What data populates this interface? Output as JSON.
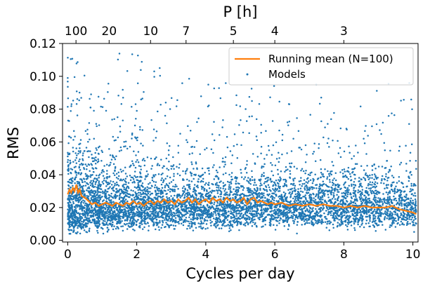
{
  "chart_data": {
    "type": "scatter",
    "xlabel": "Cycles per day",
    "ylabel": "RMS",
    "top_xlabel": "P [h]",
    "xlim": [
      -0.15,
      10.15
    ],
    "ylim": [
      -0.001,
      0.12
    ],
    "x_ticks": [
      0,
      2,
      4,
      6,
      8,
      10
    ],
    "x_tick_labels": [
      "0",
      "2",
      "4",
      "6",
      "8",
      "10"
    ],
    "y_ticks": [
      0.0,
      0.02,
      0.04,
      0.06,
      0.08,
      0.1,
      0.12
    ],
    "y_tick_labels": [
      "0.00",
      "0.02",
      "0.04",
      "0.06",
      "0.08",
      "0.10",
      "0.12"
    ],
    "top_ticks_hours": [
      100,
      20,
      10,
      7,
      5,
      4,
      3
    ],
    "top_tick_labels": [
      "100",
      "20",
      "10",
      "7",
      "5",
      "4",
      "3"
    ],
    "legend_position": "top-right",
    "colors": {
      "scatter": "#1f77b4",
      "line": "#ff7f0e"
    },
    "series": [
      {
        "name": "Running mean (N=100)",
        "kind": "line",
        "x": [
          0.0,
          0.05,
          0.1,
          0.15,
          0.2,
          0.25,
          0.3,
          0.35,
          0.4,
          0.5,
          0.6,
          0.7,
          0.8,
          0.9,
          1.0,
          1.1,
          1.2,
          1.3,
          1.4,
          1.5,
          1.6,
          1.7,
          1.8,
          1.9,
          2.0,
          2.1,
          2.2,
          2.3,
          2.4,
          2.5,
          2.6,
          2.7,
          2.8,
          2.9,
          3.0,
          3.1,
          3.2,
          3.3,
          3.4,
          3.5,
          3.6,
          3.7,
          3.8,
          3.9,
          4.0,
          4.1,
          4.2,
          4.3,
          4.4,
          4.5,
          4.6,
          4.7,
          4.8,
          4.9,
          5.0,
          5.1,
          5.2,
          5.3,
          5.4,
          5.5,
          5.6,
          5.7,
          5.8,
          5.9,
          6.0,
          6.2,
          6.4,
          6.6,
          6.8,
          7.0,
          7.2,
          7.4,
          7.6,
          7.8,
          8.0,
          8.2,
          8.4,
          8.6,
          8.8,
          9.0,
          9.2,
          9.4,
          9.6,
          9.8,
          10.0,
          10.1
        ],
        "y": [
          0.028,
          0.031,
          0.029,
          0.032,
          0.03,
          0.034,
          0.029,
          0.031,
          0.027,
          0.026,
          0.024,
          0.022,
          0.023,
          0.021,
          0.022,
          0.023,
          0.022,
          0.021,
          0.023,
          0.022,
          0.021,
          0.023,
          0.022,
          0.024,
          0.022,
          0.023,
          0.021,
          0.023,
          0.024,
          0.022,
          0.024,
          0.023,
          0.025,
          0.023,
          0.024,
          0.022,
          0.025,
          0.023,
          0.024,
          0.026,
          0.023,
          0.025,
          0.022,
          0.024,
          0.025,
          0.023,
          0.026,
          0.024,
          0.025,
          0.023,
          0.026,
          0.024,
          0.025,
          0.023,
          0.024,
          0.026,
          0.022,
          0.025,
          0.026,
          0.023,
          0.024,
          0.023,
          0.022,
          0.023,
          0.022,
          0.023,
          0.021,
          0.022,
          0.021,
          0.022,
          0.021,
          0.022,
          0.021,
          0.021,
          0.02,
          0.021,
          0.02,
          0.021,
          0.02,
          0.02,
          0.02,
          0.021,
          0.019,
          0.018,
          0.017,
          0.016
        ]
      },
      {
        "name": "Models",
        "kind": "scatter",
        "count": 6000,
        "seed": 12345,
        "x_range": [
          0.0,
          10.1
        ],
        "typical_y_range": [
          0.007,
          0.045
        ],
        "median_y": 0.021,
        "outlier_max_y": 0.114
      }
    ]
  }
}
